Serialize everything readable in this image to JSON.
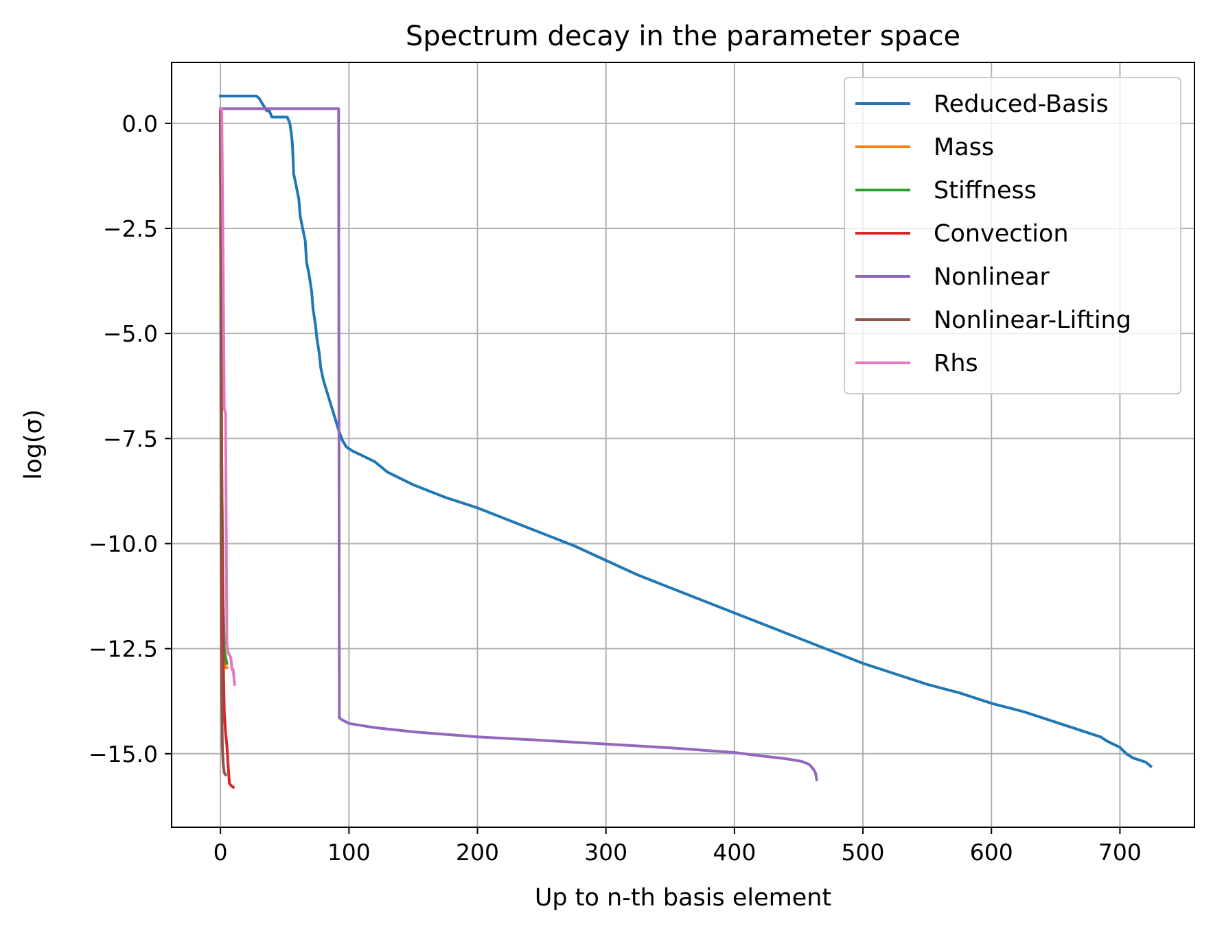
{
  "chart_data": {
    "type": "line",
    "title": "Spectrum decay in the parameter space",
    "xlabel": "Up to n-th basis element",
    "ylabel": "log(σ)",
    "xlim": [
      -38,
      758
    ],
    "ylim": [
      -16.75,
      1.45
    ],
    "xticks": [
      0,
      100,
      200,
      300,
      400,
      500,
      600,
      700
    ],
    "xtick_labels": [
      "0",
      "100",
      "200",
      "300",
      "400",
      "500",
      "600",
      "700"
    ],
    "yticks": [
      0.0,
      -2.5,
      -5.0,
      -7.5,
      -10.0,
      -12.5,
      -15.0
    ],
    "ytick_labels": [
      "0.0",
      "−2.5",
      "−5.0",
      "−7.5",
      "−10.0",
      "−12.5",
      "−15.0"
    ],
    "grid": true,
    "legend_position": "upper right",
    "series": [
      {
        "name": "Reduced-Basis",
        "color": "#1f77b4",
        "points": [
          [
            0,
            0.65
          ],
          [
            28,
            0.65
          ],
          [
            30,
            0.6
          ],
          [
            33,
            0.45
          ],
          [
            36,
            0.3
          ],
          [
            38,
            0.3
          ],
          [
            40,
            0.15
          ],
          [
            52,
            0.15
          ],
          [
            54,
            0.0
          ],
          [
            55,
            -0.2
          ],
          [
            56,
            -0.5
          ],
          [
            57,
            -1.2
          ],
          [
            59,
            -1.5
          ],
          [
            61,
            -1.8
          ],
          [
            62,
            -2.2
          ],
          [
            64,
            -2.5
          ],
          [
            66,
            -2.8
          ],
          [
            67,
            -3.3
          ],
          [
            69,
            -3.6
          ],
          [
            71,
            -4.0
          ],
          [
            72,
            -4.4
          ],
          [
            74,
            -4.8
          ],
          [
            75,
            -5.1
          ],
          [
            77,
            -5.5
          ],
          [
            78,
            -5.8
          ],
          [
            80,
            -6.1
          ],
          [
            82,
            -6.3
          ],
          [
            85,
            -6.6
          ],
          [
            88,
            -6.9
          ],
          [
            90,
            -7.1
          ],
          [
            92,
            -7.3
          ],
          [
            95,
            -7.55
          ],
          [
            98,
            -7.7
          ],
          [
            103,
            -7.8
          ],
          [
            110,
            -7.9
          ],
          [
            120,
            -8.05
          ],
          [
            130,
            -8.3
          ],
          [
            150,
            -8.6
          ],
          [
            175,
            -8.9
          ],
          [
            200,
            -9.15
          ],
          [
            225,
            -9.45
          ],
          [
            250,
            -9.75
          ],
          [
            275,
            -10.05
          ],
          [
            300,
            -10.4
          ],
          [
            325,
            -10.75
          ],
          [
            350,
            -11.05
          ],
          [
            375,
            -11.35
          ],
          [
            400,
            -11.65
          ],
          [
            425,
            -11.95
          ],
          [
            450,
            -12.25
          ],
          [
            475,
            -12.55
          ],
          [
            500,
            -12.85
          ],
          [
            525,
            -13.1
          ],
          [
            550,
            -13.35
          ],
          [
            575,
            -13.55
          ],
          [
            600,
            -13.8
          ],
          [
            625,
            -14.0
          ],
          [
            650,
            -14.25
          ],
          [
            675,
            -14.5
          ],
          [
            685,
            -14.6
          ],
          [
            690,
            -14.7
          ],
          [
            700,
            -14.85
          ],
          [
            705,
            -15.0
          ],
          [
            710,
            -15.1
          ],
          [
            720,
            -15.2
          ],
          [
            724,
            -15.3
          ]
        ]
      },
      {
        "name": "Mass",
        "color": "#ff7f0e",
        "points": [
          [
            0,
            0.3
          ],
          [
            1,
            -8.0
          ],
          [
            2,
            -11.5
          ],
          [
            3,
            -12.7
          ],
          [
            4,
            -12.95
          ],
          [
            5,
            -12.95
          ]
        ]
      },
      {
        "name": "Stiffness",
        "color": "#2ca02c",
        "points": [
          [
            0,
            0.3
          ],
          [
            1,
            -8.0
          ],
          [
            2,
            -11.3
          ],
          [
            3,
            -12.5
          ],
          [
            4,
            -12.7
          ],
          [
            5,
            -12.85
          ]
        ]
      },
      {
        "name": "Convection",
        "color": "#d62728",
        "points": [
          [
            0,
            0.3
          ],
          [
            1,
            -9.0
          ],
          [
            2,
            -12.5
          ],
          [
            3,
            -14.0
          ],
          [
            4,
            -14.5
          ],
          [
            5,
            -14.8
          ],
          [
            6,
            -15.3
          ],
          [
            7,
            -15.7
          ],
          [
            8,
            -15.75
          ],
          [
            10,
            -15.8
          ]
        ]
      },
      {
        "name": "Nonlinear",
        "color": "#9467bd",
        "points": [
          [
            0,
            0.35
          ],
          [
            92,
            0.35
          ],
          [
            92.5,
            -14.15
          ],
          [
            95,
            -14.2
          ],
          [
            100,
            -14.28
          ],
          [
            120,
            -14.38
          ],
          [
            150,
            -14.48
          ],
          [
            200,
            -14.6
          ],
          [
            250,
            -14.68
          ],
          [
            300,
            -14.77
          ],
          [
            350,
            -14.86
          ],
          [
            400,
            -14.97
          ],
          [
            420,
            -15.05
          ],
          [
            440,
            -15.12
          ],
          [
            452,
            -15.18
          ],
          [
            458,
            -15.25
          ],
          [
            461,
            -15.35
          ],
          [
            463,
            -15.45
          ],
          [
            464,
            -15.62
          ]
        ]
      },
      {
        "name": "Nonlinear-Lifting",
        "color": "#8c564b",
        "points": [
          [
            0,
            0.3
          ],
          [
            0.5,
            -10.0
          ],
          [
            1,
            -13.5
          ],
          [
            1.5,
            -14.8
          ],
          [
            2,
            -15.2
          ],
          [
            3,
            -15.45
          ],
          [
            4,
            -15.5
          ]
        ]
      },
      {
        "name": "Rhs",
        "color": "#e377c2",
        "points": [
          [
            0,
            0.35
          ],
          [
            1,
            0.35
          ],
          [
            2,
            -3.0
          ],
          [
            3,
            -6.8
          ],
          [
            4,
            -6.9
          ],
          [
            5,
            -12.4
          ],
          [
            6,
            -12.6
          ],
          [
            8,
            -12.7
          ],
          [
            9,
            -13.0
          ],
          [
            10,
            -13.0
          ],
          [
            11,
            -13.35
          ]
        ]
      }
    ]
  }
}
